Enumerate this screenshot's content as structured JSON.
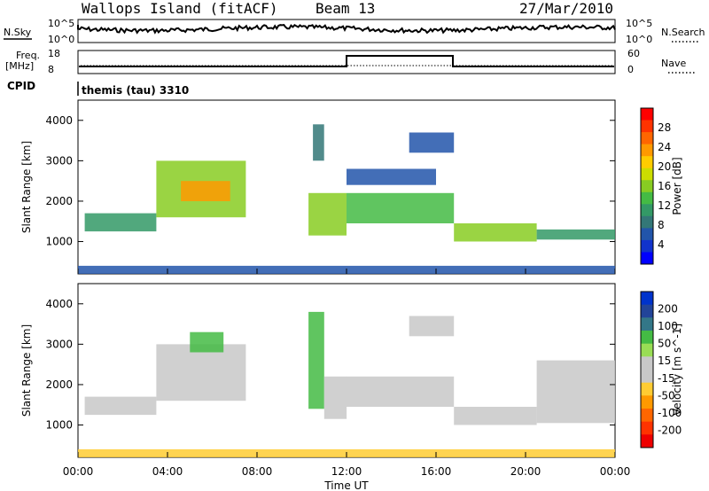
{
  "header": {
    "station": "Wallops Island (fitACF)",
    "beam": "Beam 13",
    "date": "27/Mar/2010"
  },
  "noise_panel": {
    "left_label": "N.Sky",
    "right_label": "N.Search",
    "left_ticks": [
      "10^5",
      "10^0"
    ],
    "right_ticks": [
      "10^5",
      "10^0"
    ]
  },
  "freq_panel": {
    "left_label_1": "Freq.",
    "left_label_2": "[MHz]",
    "right_label": "Nave",
    "left_ticks": [
      "18",
      "8"
    ],
    "right_ticks": [
      "60",
      "0"
    ]
  },
  "cpid": {
    "label": "CPID",
    "value": "themis (tau) 3310"
  },
  "power_colorbar": {
    "label": "Power [dB]",
    "ticks": [
      "28",
      "24",
      "20",
      "16",
      "12",
      "8",
      "4"
    ],
    "colors": [
      "#ff0000",
      "#ff3300",
      "#ff6600",
      "#ff9900",
      "#ffcc00",
      "#ccdd00",
      "#88cc22",
      "#44bb44",
      "#339966",
      "#337777",
      "#2255aa",
      "#1133cc",
      "#0000ff"
    ]
  },
  "velocity_colorbar": {
    "label": "Velocity [m s^-1]",
    "ticks": [
      "200",
      "100",
      "50",
      "15",
      "-15",
      "-50",
      "-100",
      "-200"
    ],
    "colors": [
      "#0033cc",
      "#224499",
      "#337788",
      "#44bb44",
      "#99dd55",
      "#c8c8c8",
      "#c8c8c8",
      "#ffcc33",
      "#ff9900",
      "#ff6600",
      "#ff3300",
      "#ee0000"
    ]
  },
  "x_axis": {
    "label": "Time UT",
    "ticks": [
      "00:00",
      "04:00",
      "08:00",
      "12:00",
      "16:00",
      "20:00",
      "00:00"
    ]
  },
  "power_ylabel": "Slant Range [km]",
  "velocity_ylabel": "Slant Range [km]",
  "y_ticks": [
    "4000",
    "3000",
    "2000",
    "1000"
  ],
  "chart_data": [
    {
      "type": "heatmap",
      "title": "Power",
      "xlabel": "Time UT",
      "ylabel": "Slant Range [km]",
      "xlim": [
        0,
        24
      ],
      "ylim": [
        200,
        4500
      ],
      "z_label": "Power [dB]",
      "z_range": [
        0,
        30
      ],
      "regions": [
        {
          "t0": 0.3,
          "t1": 3.5,
          "r0": 1250,
          "r1": 1700,
          "v": 9
        },
        {
          "t0": 3.5,
          "t1": 7.5,
          "r0": 1600,
          "r1": 3000,
          "v": 16
        },
        {
          "t0": 4.6,
          "t1": 6.8,
          "r0": 2000,
          "r1": 2500,
          "v": 22
        },
        {
          "t0": 10.3,
          "t1": 12.0,
          "r0": 1150,
          "r1": 2200,
          "v": 16
        },
        {
          "t0": 10.5,
          "t1": 11.0,
          "r0": 3000,
          "r1": 3900,
          "v": 8
        },
        {
          "t0": 12.0,
          "t1": 16.8,
          "r0": 1450,
          "r1": 2200,
          "v": 12
        },
        {
          "t0": 12.0,
          "t1": 16.0,
          "r0": 2400,
          "r1": 2800,
          "v": 6
        },
        {
          "t0": 14.8,
          "t1": 16.8,
          "r0": 3200,
          "r1": 3700,
          "v": 6
        },
        {
          "t0": 16.8,
          "t1": 20.5,
          "r0": 1000,
          "r1": 1450,
          "v": 14
        },
        {
          "t0": 20.5,
          "t1": 24.0,
          "r0": 1050,
          "r1": 1300,
          "v": 9
        },
        {
          "t0": 0.0,
          "t1": 24.0,
          "r0": 200,
          "r1": 400,
          "v": 6
        }
      ]
    },
    {
      "type": "heatmap",
      "title": "Velocity",
      "xlabel": "Time UT",
      "ylabel": "Slant Range [km]",
      "xlim": [
        0,
        24
      ],
      "ylim": [
        200,
        4500
      ],
      "z_label": "Velocity [m s^-1]",
      "z_range": [
        -200,
        200
      ],
      "regions": [
        {
          "t0": 0.3,
          "t1": 3.5,
          "r0": 1250,
          "r1": 1700,
          "v": 0
        },
        {
          "t0": 3.5,
          "t1": 7.5,
          "r0": 1600,
          "r1": 3000,
          "v": 0
        },
        {
          "t0": 5.0,
          "t1": 6.5,
          "r0": 2800,
          "r1": 3300,
          "v": 30
        },
        {
          "t0": 10.3,
          "t1": 11.0,
          "r0": 1400,
          "r1": 3800,
          "v": 30
        },
        {
          "t0": 11.0,
          "t1": 12.0,
          "r0": 1150,
          "r1": 2200,
          "v": 0
        },
        {
          "t0": 12.0,
          "t1": 16.8,
          "r0": 1450,
          "r1": 2200,
          "v": 0
        },
        {
          "t0": 14.8,
          "t1": 16.8,
          "r0": 3200,
          "r1": 3700,
          "v": 0
        },
        {
          "t0": 16.8,
          "t1": 20.5,
          "r0": 1000,
          "r1": 1450,
          "v": 0
        },
        {
          "t0": 20.5,
          "t1": 24.0,
          "r0": 1050,
          "r1": 2600,
          "v": 0
        },
        {
          "t0": 0.0,
          "t1": 24.0,
          "r0": 200,
          "r1": 400,
          "v": -30
        }
      ]
    }
  ]
}
